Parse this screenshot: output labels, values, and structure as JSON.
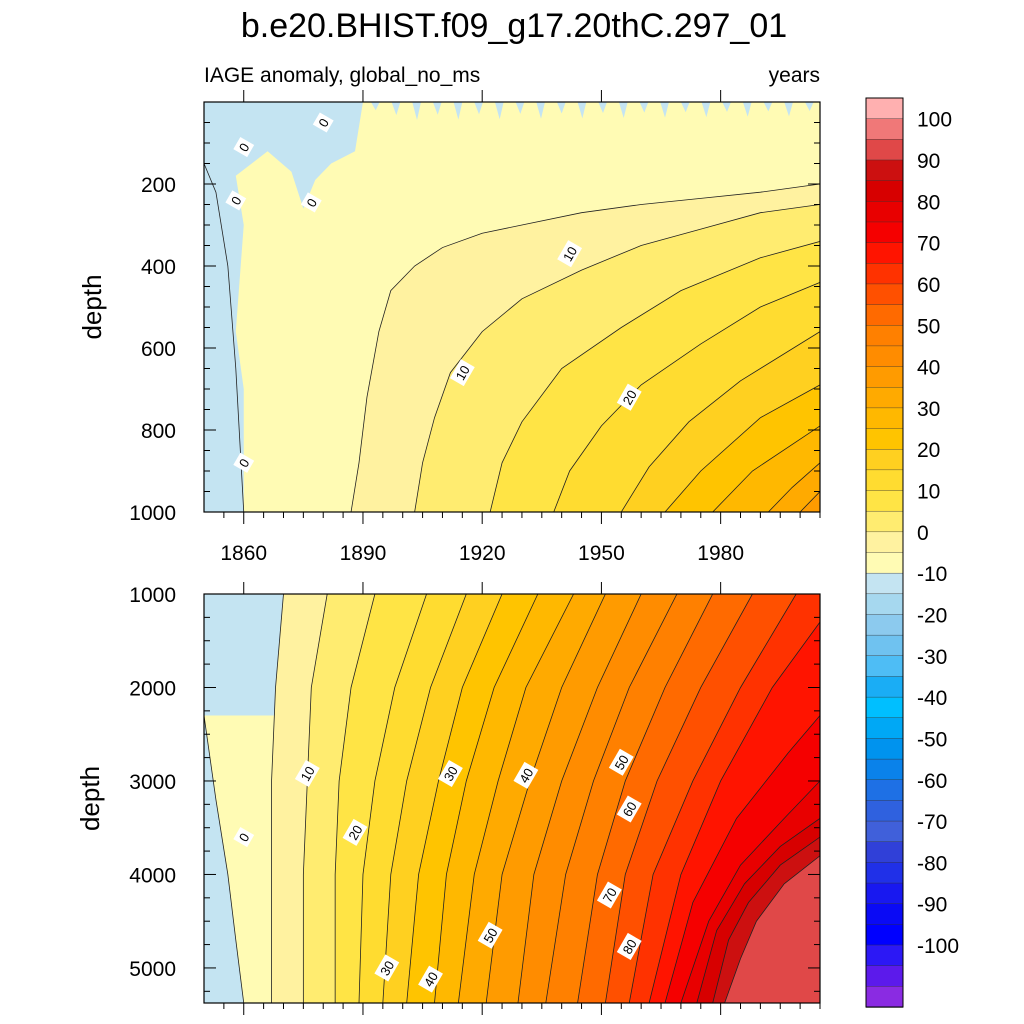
{
  "title": "b.e20.BHIST.f09_g17.20thC.297_01",
  "subtitle_left": "IAGE anomaly, global_no_ms",
  "subtitle_right": "years",
  "chart_data": [
    {
      "type": "contour",
      "panel": "upper",
      "xlabel": "",
      "ylabel": "depth",
      "xlim": [
        1850,
        2005
      ],
      "ylim": [
        1000,
        0
      ],
      "x_ticks": [
        "1860",
        "1890",
        "1920",
        "1950",
        "1980"
      ],
      "y_ticks": [
        "200",
        "400",
        "600",
        "800",
        "1000"
      ],
      "contour_interval": 5,
      "contour_labels": [
        {
          "text": "0",
          "x": 1880,
          "y": 50
        },
        {
          "text": "0",
          "x": 1860,
          "y": 110
        },
        {
          "text": "0",
          "x": 1858,
          "y": 240
        },
        {
          "text": "0",
          "x": 1877,
          "y": 245
        },
        {
          "text": "0",
          "x": 1860,
          "y": 880
        },
        {
          "text": "10",
          "x": 1942,
          "y": 370
        },
        {
          "text": "10",
          "x": 1915,
          "y": 660
        },
        {
          "text": "20",
          "x": 1957,
          "y": 720
        }
      ],
      "contours": [
        {
          "level": 5,
          "x": [
            1887,
            1889,
            1891,
            1894,
            1897,
            1903,
            1910,
            1920,
            1930,
            1945,
            1960,
            1975,
            1990,
            2005
          ],
          "y": [
            1000,
            880,
            720,
            560,
            460,
            400,
            355,
            320,
            300,
            270,
            250,
            235,
            220,
            200
          ]
        },
        {
          "level": 10,
          "x": [
            1903,
            1905,
            1908,
            1912,
            1920,
            1930,
            1945,
            1960,
            1975,
            1990,
            2005
          ],
          "y": [
            1000,
            880,
            770,
            660,
            560,
            480,
            410,
            350,
            310,
            270,
            250
          ]
        },
        {
          "level": 15,
          "x": [
            1922,
            1925,
            1930,
            1940,
            1955,
            1970,
            1990,
            2005
          ],
          "y": [
            1000,
            880,
            780,
            650,
            550,
            460,
            380,
            340
          ]
        },
        {
          "level": 20,
          "x": [
            1938,
            1942,
            1950,
            1960,
            1975,
            1990,
            2005
          ],
          "y": [
            1000,
            900,
            790,
            690,
            590,
            500,
            440
          ]
        },
        {
          "level": 25,
          "x": [
            1955,
            1962,
            1972,
            1985,
            2005
          ],
          "y": [
            1000,
            890,
            780,
            680,
            560
          ]
        },
        {
          "level": 30,
          "x": [
            1966,
            1975,
            1990,
            2005
          ],
          "y": [
            1000,
            900,
            770,
            690
          ]
        },
        {
          "level": 35,
          "x": [
            1978,
            1988,
            2005
          ],
          "y": [
            1000,
            900,
            790
          ]
        },
        {
          "level": 40,
          "x": [
            1992,
            1998,
            2005
          ],
          "y": [
            1000,
            940,
            880
          ]
        },
        {
          "level": 45,
          "x": [
            2000,
            2005
          ],
          "y": [
            1000,
            950
          ]
        }
      ]
    },
    {
      "type": "contour",
      "panel": "lower",
      "xlabel": "",
      "ylabel": "depth",
      "xlim": [
        1850,
        2005
      ],
      "ylim": [
        5375,
        1000
      ],
      "y_ticks": [
        "1000",
        "2000",
        "3000",
        "4000",
        "5000"
      ],
      "contour_interval": 5,
      "contour_labels": [
        {
          "text": "0",
          "x": 1860,
          "y": 3600
        },
        {
          "text": "10",
          "x": 1876,
          "y": 2920
        },
        {
          "text": "20",
          "x": 1888,
          "y": 3550
        },
        {
          "text": "30",
          "x": 1912,
          "y": 2920
        },
        {
          "text": "40",
          "x": 1931,
          "y": 2940
        },
        {
          "text": "50",
          "x": 1955,
          "y": 2800
        },
        {
          "text": "60",
          "x": 1957,
          "y": 3300
        },
        {
          "text": "30",
          "x": 1896,
          "y": 5000
        },
        {
          "text": "40",
          "x": 1907,
          "y": 5120
        },
        {
          "text": "50",
          "x": 1922,
          "y": 4650
        },
        {
          "text": "70",
          "x": 1952,
          "y": 4220
        },
        {
          "text": "80",
          "x": 1957,
          "y": 4770
        }
      ],
      "contours": [
        {
          "level": 0,
          "x": [
            1850,
            1853,
            1856,
            1858,
            1860
          ],
          "y": [
            2300,
            3200,
            4000,
            4700,
            5375
          ]
        },
        {
          "level": 5,
          "x": [
            1870,
            1868,
            1867,
            1867,
            1867
          ],
          "y": [
            1000,
            2000,
            3000,
            4000,
            5375
          ]
        },
        {
          "level": 10,
          "x": [
            1881,
            1877,
            1876,
            1875,
            1875
          ],
          "y": [
            1000,
            2000,
            3000,
            4000,
            5375
          ]
        },
        {
          "level": 15,
          "x": [
            1893,
            1887,
            1884,
            1883,
            1883
          ],
          "y": [
            1000,
            2000,
            3000,
            4000,
            5375
          ]
        },
        {
          "level": 20,
          "x": [
            1906,
            1898,
            1893,
            1890,
            1889
          ],
          "y": [
            1000,
            2000,
            3000,
            4000,
            5375
          ]
        },
        {
          "level": 25,
          "x": [
            1916,
            1907,
            1901,
            1897,
            1895
          ],
          "y": [
            1000,
            2000,
            3000,
            4000,
            5375
          ]
        },
        {
          "level": 30,
          "x": [
            1925,
            1915,
            1909,
            1904,
            1901
          ],
          "y": [
            1000,
            2000,
            3000,
            4000,
            5375
          ]
        },
        {
          "level": 35,
          "x": [
            1934,
            1923,
            1916,
            1911,
            1908
          ],
          "y": [
            1000,
            2000,
            3000,
            4000,
            5375
          ]
        },
        {
          "level": 40,
          "x": [
            1943,
            1931,
            1924,
            1918,
            1914
          ],
          "y": [
            1000,
            2000,
            3000,
            4000,
            5375
          ]
        },
        {
          "level": 45,
          "x": [
            1951,
            1940,
            1932,
            1925,
            1921
          ],
          "y": [
            1000,
            2000,
            3000,
            4000,
            5375
          ]
        },
        {
          "level": 50,
          "x": [
            1960,
            1949,
            1940,
            1933,
            1929
          ],
          "y": [
            1000,
            2000,
            3000,
            4000,
            5375
          ]
        },
        {
          "level": 55,
          "x": [
            1969,
            1957,
            1948,
            1941,
            1936
          ],
          "y": [
            1000,
            2000,
            3000,
            4000,
            5375
          ]
        },
        {
          "level": 60,
          "x": [
            1978,
            1966,
            1956,
            1949,
            1944
          ],
          "y": [
            1000,
            2000,
            3000,
            4000,
            5375
          ]
        },
        {
          "level": 65,
          "x": [
            1988,
            1975,
            1964,
            1956,
            1951
          ],
          "y": [
            1000,
            2000,
            3000,
            4000,
            5375
          ]
        },
        {
          "level": 70,
          "x": [
            1999,
            1985,
            1973,
            1963,
            1957
          ],
          "y": [
            1000,
            2000,
            3000,
            4000,
            5375
          ]
        },
        {
          "level": 75,
          "x": [
            2005,
            1993,
            1980,
            1970,
            1962
          ],
          "y": [
            1300,
            2000,
            3000,
            4000,
            5375
          ]
        },
        {
          "level": 80,
          "x": [
            2005,
            1997,
            1984,
            1973,
            1966
          ],
          "y": [
            2300,
            2700,
            3400,
            4300,
            5375
          ]
        },
        {
          "level": 85,
          "x": [
            2005,
            1996,
            1985,
            1977,
            1970
          ],
          "y": [
            3000,
            3400,
            3900,
            4500,
            5375
          ]
        },
        {
          "level": 90,
          "x": [
            2005,
            1995,
            1986,
            1979,
            1974
          ],
          "y": [
            3400,
            3700,
            4100,
            4600,
            5375
          ]
        },
        {
          "level": 95,
          "x": [
            2005,
            1995,
            1987,
            1982,
            1978
          ],
          "y": [
            3600,
            3900,
            4300,
            4700,
            5375
          ]
        },
        {
          "level": 100,
          "x": [
            2005,
            1996,
            1989,
            1985,
            1981
          ],
          "y": [
            3800,
            4100,
            4500,
            4900,
            5375
          ]
        }
      ]
    }
  ],
  "colorbar": {
    "labels": [
      "100",
      "90",
      "80",
      "70",
      "60",
      "50",
      "40",
      "30",
      "20",
      "10",
      "0",
      "-10",
      "-20",
      "-30",
      "-40",
      "-50",
      "-60",
      "-70",
      "-80",
      "-90",
      "-100"
    ],
    "colors": [
      "#ffb0b0",
      "#f07878",
      "#e04848",
      "#cc1010",
      "#d70000",
      "#e80000",
      "#f50000",
      "#ff1400",
      "#ff3200",
      "#ff5000",
      "#ff6a00",
      "#ff8000",
      "#ff8c00",
      "#ff9b00",
      "#ffaa00",
      "#ffb800",
      "#ffc400",
      "#ffd020",
      "#ffdc30",
      "#ffe445",
      "#ffec70",
      "#fff2a0",
      "#fffbb4",
      "#c4e4f2",
      "#a6d8ef",
      "#8ccaee",
      "#6fc2f0",
      "#4ebdf5",
      "#1aadf5",
      "#00bfff",
      "#00a8f5",
      "#0093ee",
      "#0a82ea",
      "#1e70e5",
      "#2f61df",
      "#4060da",
      "#3040d8",
      "#2030e8",
      "#1818f0",
      "#0a0af5",
      "#0000ff",
      "#2c18f5",
      "#5c1aeb",
      "#8a2be2"
    ]
  }
}
